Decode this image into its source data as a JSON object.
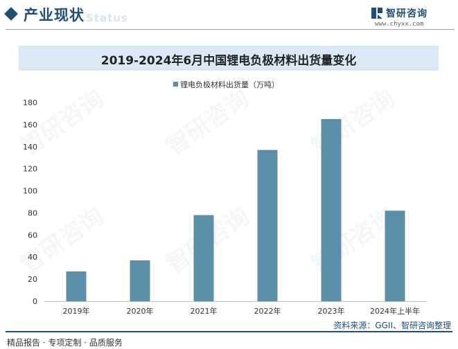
{
  "header": {
    "section_title": "产业现状",
    "ghost_word": "Status",
    "brand_name": "智研咨询",
    "brand_url": "www.chyxx.com"
  },
  "chart_data": {
    "type": "bar",
    "title": "2019-2024年6月中国锂电负极材料出货量变化",
    "categories": [
      "2019年",
      "2020年",
      "2021年",
      "2022年",
      "2023年",
      "2024年上半年"
    ],
    "series": [
      {
        "name": "锂电负极材料出货量（万吨）",
        "values": [
          27,
          37,
          78,
          137,
          165,
          82
        ]
      }
    ],
    "yticks": [
      0,
      20,
      40,
      60,
      80,
      100,
      120,
      140,
      160,
      180
    ],
    "ylim": [
      0,
      180
    ],
    "grid": false,
    "legend": "top-center",
    "bar_color": "#5b8ea8",
    "xlabel": "",
    "ylabel": ""
  },
  "footer": {
    "left": "精品报告 · 专项定制 · 品质服务",
    "source": "资料来源：GGII、智研咨询整理"
  },
  "watermark_text": "智研咨询"
}
